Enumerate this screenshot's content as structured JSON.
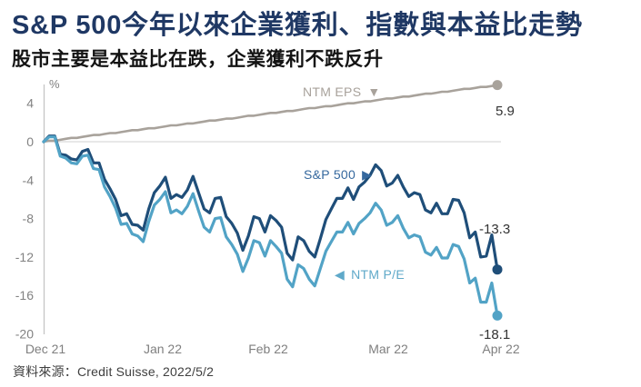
{
  "title": "S&P 500今年以來企業獲利、指數與本益比走勢",
  "subtitle": "股市主要是本益比在跌，企業獲利不跌反升",
  "source": "資料來源：Credit Suisse, 2022/5/2",
  "colors": {
    "title": "#1F3864",
    "axis_text": "#808080",
    "value_text": "#333333"
  },
  "chart_data": {
    "type": "line",
    "unit_label": "%",
    "x_axis": {
      "tick_labels": [
        "Dec 21",
        "Jan 22",
        "Feb 22",
        "Mar 22",
        "Apr 22"
      ]
    },
    "y_axis": {
      "ticks": [
        4,
        0,
        -4,
        -8,
        -12,
        -16,
        -20
      ],
      "range": [
        -20,
        6
      ]
    },
    "annotations": [
      {
        "text": "NTM EPS",
        "marker": "▼"
      },
      {
        "text": "S&P 500",
        "marker": "▶"
      },
      {
        "text": "NTM P/E",
        "marker": "◀"
      }
    ],
    "series": [
      {
        "id": "ntm-eps",
        "name": "NTM EPS",
        "color": "#A8A29B",
        "label_color": "#A8A29B",
        "width": 2.6,
        "end_value": 5.9,
        "end_label": "5.9",
        "values": [
          0.0,
          0.1,
          0.1,
          0.2,
          0.3,
          0.4,
          0.4,
          0.5,
          0.6,
          0.7,
          0.7,
          0.8,
          0.9,
          0.9,
          1.0,
          1.1,
          1.2,
          1.2,
          1.3,
          1.4,
          1.4,
          1.5,
          1.6,
          1.7,
          1.7,
          1.8,
          1.9,
          1.9,
          2.0,
          2.1,
          2.2,
          2.2,
          2.3,
          2.4,
          2.4,
          2.5,
          2.6,
          2.7,
          2.7,
          2.8,
          2.9,
          3.0,
          3.0,
          3.1,
          3.2,
          3.2,
          3.3,
          3.4,
          3.5,
          3.5,
          3.6,
          3.7,
          3.7,
          3.8,
          3.9,
          4.0,
          4.0,
          4.1,
          4.2,
          4.2,
          4.3,
          4.4,
          4.5,
          4.5,
          4.6,
          4.7,
          4.7,
          4.8,
          4.9,
          5.0,
          5.0,
          5.1,
          5.2,
          5.2,
          5.3,
          5.4,
          5.5,
          5.5,
          5.6,
          5.7,
          5.7,
          5.8,
          5.9
        ]
      },
      {
        "id": "sp500",
        "name": "S&P 500",
        "color": "#1F4E79",
        "label_color": "#35689E",
        "width": 3.2,
        "end_value": -13.3,
        "end_label": "-13.3",
        "values": [
          0.0,
          0.6,
          0.6,
          -1.3,
          -1.4,
          -1.8,
          -1.9,
          -1.0,
          -0.8,
          -2.2,
          -2.2,
          -3.9,
          -4.9,
          -6.0,
          -7.7,
          -7.5,
          -8.6,
          -8.7,
          -9.2,
          -7.0,
          -5.3,
          -4.6,
          -3.7,
          -5.9,
          -5.5,
          -5.8,
          -5.0,
          -3.6,
          -5.3,
          -7.0,
          -7.4,
          -5.9,
          -5.8,
          -7.8,
          -8.5,
          -9.5,
          -11.3,
          -9.8,
          -7.8,
          -8.0,
          -9.4,
          -7.7,
          -8.2,
          -8.9,
          -11.6,
          -12.3,
          -9.9,
          -10.3,
          -11.4,
          -12.0,
          -10.1,
          -8.1,
          -7.0,
          -5.9,
          -5.9,
          -4.8,
          -6.0,
          -4.7,
          -4.2,
          -3.5,
          -2.4,
          -3.0,
          -4.6,
          -4.3,
          -3.5,
          -4.7,
          -5.7,
          -5.3,
          -5.5,
          -7.1,
          -7.4,
          -6.4,
          -7.5,
          -7.5,
          -6.0,
          -6.1,
          -7.4,
          -10.0,
          -9.4,
          -12.0,
          -11.9,
          -9.7,
          -13.3
        ]
      },
      {
        "id": "ntm-pe",
        "name": "NTM P/E",
        "color": "#52A3C6",
        "label_color": "#5FA9C9",
        "width": 3.2,
        "end_value": -18.1,
        "end_label": "-18.1",
        "values": [
          0.0,
          0.5,
          0.5,
          -1.5,
          -1.7,
          -2.2,
          -2.3,
          -1.5,
          -1.4,
          -2.8,
          -2.9,
          -4.7,
          -5.7,
          -6.9,
          -8.6,
          -8.5,
          -9.6,
          -9.8,
          -10.4,
          -8.3,
          -6.6,
          -6.0,
          -5.2,
          -7.4,
          -7.1,
          -7.5,
          -6.7,
          -5.4,
          -7.2,
          -8.9,
          -9.4,
          -8.0,
          -7.9,
          -9.9,
          -10.7,
          -11.7,
          -13.5,
          -12.1,
          -10.3,
          -10.5,
          -11.9,
          -10.3,
          -10.9,
          -11.6,
          -14.3,
          -15.1,
          -12.8,
          -13.2,
          -14.3,
          -15.0,
          -13.2,
          -11.4,
          -10.4,
          -9.4,
          -9.4,
          -8.4,
          -9.6,
          -8.5,
          -8.0,
          -7.4,
          -6.4,
          -7.1,
          -8.7,
          -8.4,
          -7.7,
          -9.0,
          -10.0,
          -9.7,
          -9.9,
          -11.5,
          -11.8,
          -11.0,
          -12.1,
          -12.1,
          -10.7,
          -10.9,
          -12.2,
          -14.7,
          -14.2,
          -16.7,
          -16.7,
          -14.7,
          -18.1
        ]
      }
    ]
  }
}
